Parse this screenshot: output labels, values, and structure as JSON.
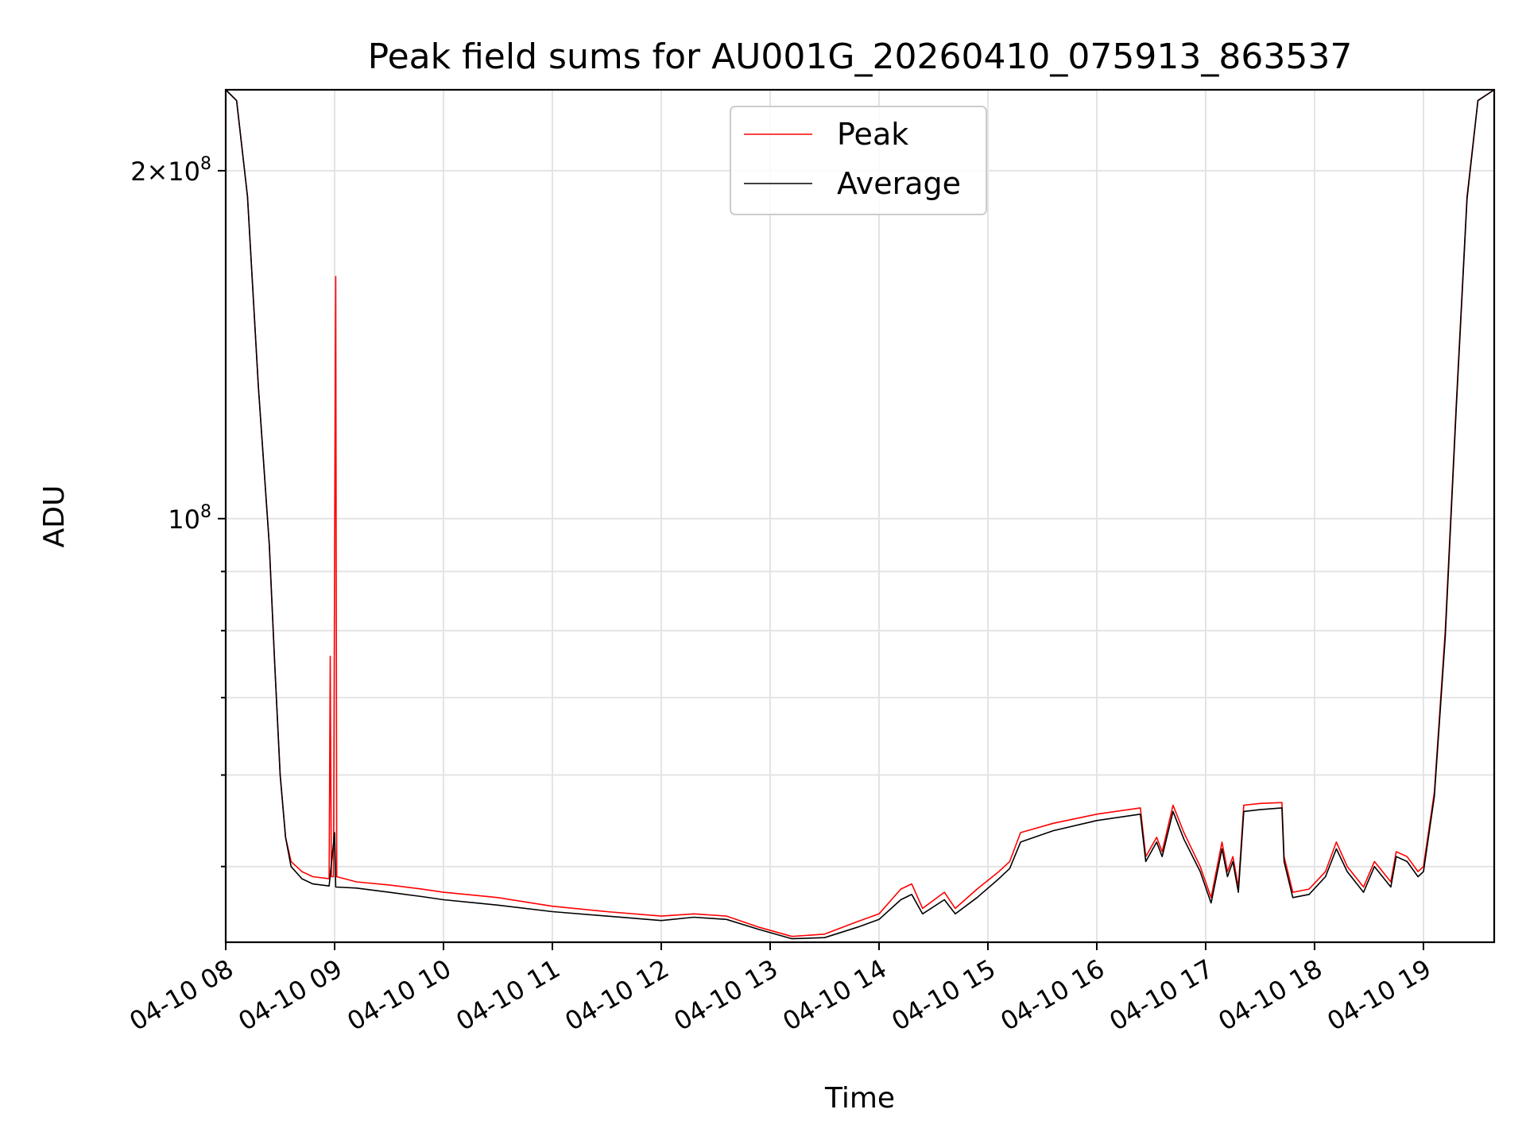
{
  "chart_data": {
    "type": "line",
    "title": "Peak field sums for AU001G_20260410_075913_863537",
    "xlabel": "Time",
    "ylabel": "ADU",
    "yscale": "log",
    "xlim": [
      8.0,
      19.65
    ],
    "ylim": [
      43000000,
      235000000
    ],
    "grid": true,
    "legend_position": "top-center",
    "x_ticks": [
      {
        "value": 8,
        "label": "04-10 08"
      },
      {
        "value": 9,
        "label": "04-10 09"
      },
      {
        "value": 10,
        "label": "04-10 10"
      },
      {
        "value": 11,
        "label": "04-10 11"
      },
      {
        "value": 12,
        "label": "04-10 12"
      },
      {
        "value": 13,
        "label": "04-10 13"
      },
      {
        "value": 14,
        "label": "04-10 14"
      },
      {
        "value": 15,
        "label": "04-10 15"
      },
      {
        "value": 16,
        "label": "04-10 16"
      },
      {
        "value": 17,
        "label": "04-10 17"
      },
      {
        "value": 18,
        "label": "04-10 18"
      },
      {
        "value": 19,
        "label": "04-10 19"
      }
    ],
    "y_ticks": [
      {
        "value": 200000000,
        "mantissa": "2×10",
        "exponent": "8"
      },
      {
        "value": 100000000,
        "mantissa": "10",
        "exponent": "8"
      }
    ],
    "y_minor_ticks": [
      50000000,
      60000000,
      70000000,
      80000000,
      90000000
    ],
    "series": [
      {
        "name": "Peak",
        "color": "#ff0000",
        "points": [
          [
            8.0,
            235000000
          ],
          [
            8.1,
            230000000
          ],
          [
            8.2,
            190000000
          ],
          [
            8.3,
            130000000
          ],
          [
            8.4,
            95000000
          ],
          [
            8.45,
            75000000
          ],
          [
            8.5,
            60000000
          ],
          [
            8.55,
            53000000
          ],
          [
            8.6,
            50500000
          ],
          [
            8.7,
            49500000
          ],
          [
            8.8,
            49000000
          ],
          [
            8.95,
            48800000
          ],
          [
            8.96,
            76000000
          ],
          [
            8.97,
            49000000
          ],
          [
            8.99,
            49000000
          ],
          [
            9.0,
            92000000
          ],
          [
            9.01,
            162000000
          ],
          [
            9.02,
            49000000
          ],
          [
            9.2,
            48500000
          ],
          [
            9.5,
            48200000
          ],
          [
            9.8,
            47800000
          ],
          [
            10.0,
            47500000
          ],
          [
            10.3,
            47200000
          ],
          [
            10.5,
            47000000
          ],
          [
            11.0,
            46200000
          ],
          [
            11.5,
            45700000
          ],
          [
            12.0,
            45300000
          ],
          [
            12.3,
            45500000
          ],
          [
            12.6,
            45300000
          ],
          [
            12.9,
            44300000
          ],
          [
            13.2,
            43500000
          ],
          [
            13.5,
            43700000
          ],
          [
            13.8,
            44800000
          ],
          [
            14.0,
            45500000
          ],
          [
            14.2,
            47800000
          ],
          [
            14.3,
            48300000
          ],
          [
            14.4,
            46000000
          ],
          [
            14.6,
            47500000
          ],
          [
            14.7,
            46000000
          ],
          [
            14.9,
            47800000
          ],
          [
            15.1,
            49500000
          ],
          [
            15.2,
            50500000
          ],
          [
            15.3,
            53500000
          ],
          [
            15.6,
            54500000
          ],
          [
            16.0,
            55500000
          ],
          [
            16.4,
            56200000
          ],
          [
            16.45,
            51000000
          ],
          [
            16.55,
            53000000
          ],
          [
            16.6,
            51500000
          ],
          [
            16.7,
            56500000
          ],
          [
            16.8,
            53500000
          ],
          [
            16.95,
            50000000
          ],
          [
            17.05,
            47000000
          ],
          [
            17.15,
            52500000
          ],
          [
            17.2,
            49500000
          ],
          [
            17.25,
            51000000
          ],
          [
            17.3,
            48000000
          ],
          [
            17.35,
            56500000
          ],
          [
            17.5,
            56700000
          ],
          [
            17.7,
            56800000
          ],
          [
            17.72,
            51000000
          ],
          [
            17.8,
            47500000
          ],
          [
            17.95,
            47800000
          ],
          [
            18.1,
            49500000
          ],
          [
            18.2,
            52500000
          ],
          [
            18.3,
            50000000
          ],
          [
            18.45,
            48000000
          ],
          [
            18.55,
            50500000
          ],
          [
            18.7,
            48500000
          ],
          [
            18.75,
            51500000
          ],
          [
            18.85,
            51000000
          ],
          [
            18.95,
            49500000
          ],
          [
            19.0,
            50000000
          ],
          [
            19.1,
            58000000
          ],
          [
            19.2,
            80000000
          ],
          [
            19.3,
            125000000
          ],
          [
            19.4,
            190000000
          ],
          [
            19.5,
            230000000
          ],
          [
            19.65,
            235000000
          ]
        ]
      },
      {
        "name": "Average",
        "color": "#000000",
        "points": [
          [
            8.0,
            235000000
          ],
          [
            8.1,
            230000000
          ],
          [
            8.2,
            190000000
          ],
          [
            8.3,
            130000000
          ],
          [
            8.4,
            95000000
          ],
          [
            8.45,
            75000000
          ],
          [
            8.5,
            60000000
          ],
          [
            8.55,
            53000000
          ],
          [
            8.6,
            50000000
          ],
          [
            8.7,
            48800000
          ],
          [
            8.8,
            48300000
          ],
          [
            8.95,
            48100000
          ],
          [
            9.0,
            53500000
          ],
          [
            9.01,
            48000000
          ],
          [
            9.2,
            47900000
          ],
          [
            9.5,
            47500000
          ],
          [
            9.8,
            47100000
          ],
          [
            10.0,
            46800000
          ],
          [
            10.3,
            46500000
          ],
          [
            10.5,
            46300000
          ],
          [
            11.0,
            45700000
          ],
          [
            11.5,
            45300000
          ],
          [
            12.0,
            44900000
          ],
          [
            12.3,
            45200000
          ],
          [
            12.6,
            45000000
          ],
          [
            12.9,
            44100000
          ],
          [
            13.2,
            43300000
          ],
          [
            13.5,
            43400000
          ],
          [
            13.8,
            44300000
          ],
          [
            14.0,
            45000000
          ],
          [
            14.2,
            46800000
          ],
          [
            14.3,
            47300000
          ],
          [
            14.4,
            45500000
          ],
          [
            14.6,
            46800000
          ],
          [
            14.7,
            45500000
          ],
          [
            14.9,
            47000000
          ],
          [
            15.1,
            48800000
          ],
          [
            15.2,
            49800000
          ],
          [
            15.3,
            52500000
          ],
          [
            15.6,
            53700000
          ],
          [
            16.0,
            54800000
          ],
          [
            16.4,
            55500000
          ],
          [
            16.45,
            50500000
          ],
          [
            16.55,
            52500000
          ],
          [
            16.6,
            51000000
          ],
          [
            16.7,
            55800000
          ],
          [
            16.8,
            52800000
          ],
          [
            16.95,
            49500000
          ],
          [
            17.05,
            46500000
          ],
          [
            17.15,
            51800000
          ],
          [
            17.2,
            49000000
          ],
          [
            17.25,
            50500000
          ],
          [
            17.3,
            47500000
          ],
          [
            17.35,
            55800000
          ],
          [
            17.5,
            56000000
          ],
          [
            17.7,
            56200000
          ],
          [
            17.72,
            50500000
          ],
          [
            17.8,
            47000000
          ],
          [
            17.95,
            47300000
          ],
          [
            18.1,
            49000000
          ],
          [
            18.2,
            51800000
          ],
          [
            18.3,
            49500000
          ],
          [
            18.45,
            47500000
          ],
          [
            18.55,
            50000000
          ],
          [
            18.7,
            48000000
          ],
          [
            18.75,
            51000000
          ],
          [
            18.85,
            50500000
          ],
          [
            18.95,
            49000000
          ],
          [
            19.0,
            49500000
          ],
          [
            19.1,
            57500000
          ],
          [
            19.2,
            79000000
          ],
          [
            19.3,
            124000000
          ],
          [
            19.4,
            189000000
          ],
          [
            19.5,
            230000000
          ],
          [
            19.65,
            235000000
          ]
        ]
      }
    ]
  }
}
